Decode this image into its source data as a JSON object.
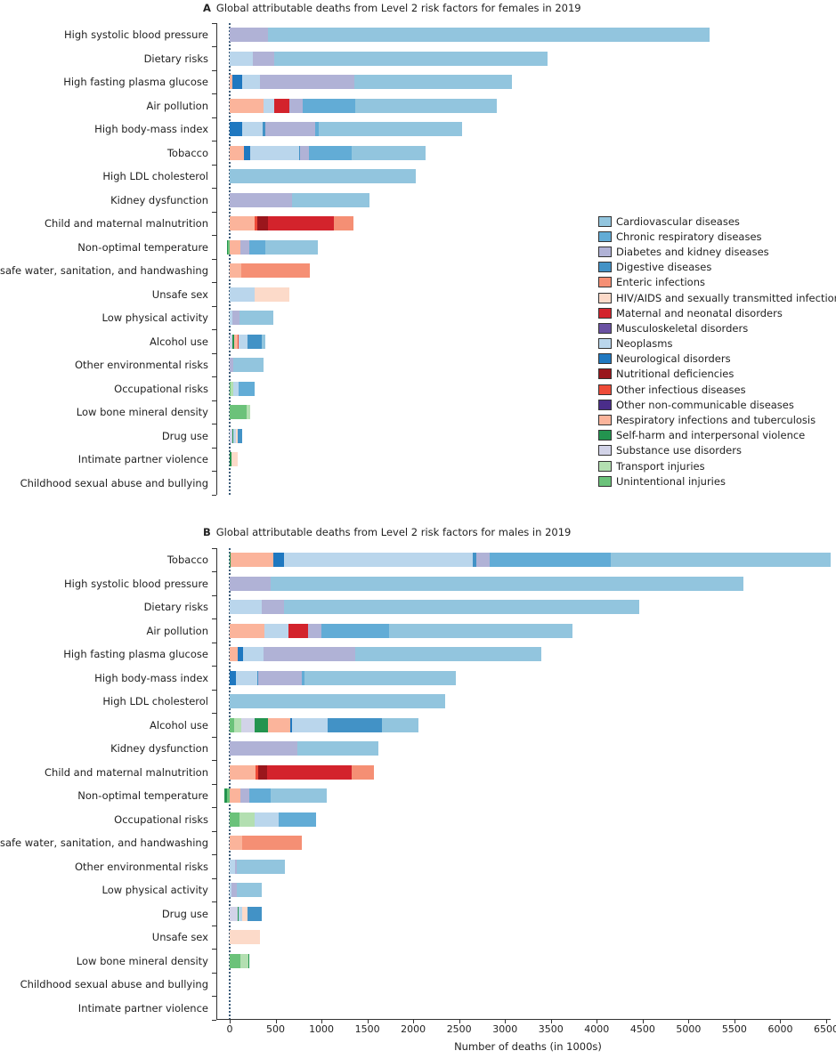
{
  "chart_data": {
    "type": "bar",
    "orientation": "horizontal-stacked",
    "xlabel": "Number of deaths (in 1000s)",
    "xlim": [
      0,
      6500
    ],
    "xticks": [
      0,
      500,
      1000,
      1500,
      2000,
      2500,
      3000,
      3500,
      4000,
      4500,
      5000,
      5500,
      6000,
      6500
    ],
    "legend_position": "right",
    "causes": {
      "CVD": {
        "name": "Cardiovascular diseases",
        "color": "#92c5de"
      },
      "CRD": {
        "name": "Chronic respiratory diseases",
        "color": "#62acd6"
      },
      "DKD": {
        "name": "Diabetes and kidney diseases",
        "color": "#b0b2d6"
      },
      "DIG": {
        "name": "Digestive diseases",
        "color": "#4292c6"
      },
      "ENT": {
        "name": "Enteric infections",
        "color": "#f58f74"
      },
      "HIV": {
        "name": "HIV/AIDS and sexually transmitted infections",
        "color": "#fcdac9"
      },
      "MAT": {
        "name": "Maternal and neonatal disorders",
        "color": "#d3232c"
      },
      "MSK": {
        "name": "Musculoskeletal disorders",
        "color": "#6a51a3"
      },
      "NEO": {
        "name": "Neoplasms",
        "color": "#bad6ec"
      },
      "NEU": {
        "name": "Neurological disorders",
        "color": "#1f78c0"
      },
      "NUT": {
        "name": "Nutritional deficiencies",
        "color": "#9a161c"
      },
      "OID": {
        "name": "Other infectious diseases",
        "color": "#ee4b38"
      },
      "ONC": {
        "name": "Other non-communicable diseases",
        "color": "#4a2d8a"
      },
      "RIT": {
        "name": "Respiratory infections and tuberculosis",
        "color": "#fbb49b"
      },
      "SH": {
        "name": "Self-harm and interpersonal violence",
        "color": "#23944f"
      },
      "SUD": {
        "name": "Substance use disorders",
        "color": "#d2d3e8"
      },
      "TRA": {
        "name": "Transport injuries",
        "color": "#b3dfb1"
      },
      "UNI": {
        "name": "Unintentional injuries",
        "color": "#6bc27a"
      }
    },
    "legend_order": [
      "CVD",
      "CRD",
      "DKD",
      "DIG",
      "ENT",
      "HIV",
      "MAT",
      "MSK",
      "NEO",
      "NEU",
      "NUT",
      "OID",
      "ONC",
      "RIT",
      "SH",
      "SUD",
      "TRA",
      "UNI"
    ],
    "panels": [
      {
        "letter": "A",
        "title": "Global attributable deaths from Level 2 risk factors for females in 2019",
        "rows": [
          {
            "label": "High systolic blood pressure",
            "segments": [
              [
                "DKD",
                420
              ],
              [
                "CVD",
                4808
              ]
            ]
          },
          {
            "label": "Dietary risks",
            "segments": [
              [
                "NEO",
                249
              ],
              [
                "DKD",
                236
              ],
              [
                "CVD",
                2981
              ]
            ]
          },
          {
            "label": "High fasting plasma glucose",
            "segments": [
              [
                "RIT",
                32
              ],
              [
                "NEU",
                103
              ],
              [
                "NEO",
                194
              ],
              [
                "DKD",
                1028
              ],
              [
                "CVD",
                1717
              ]
            ]
          },
          {
            "label": "Air pollution",
            "segments": [
              [
                "RIT",
                369
              ],
              [
                "NEO",
                120
              ],
              [
                "MAT",
                158
              ],
              [
                "DKD",
                152
              ],
              [
                "CRD",
                572
              ],
              [
                "CVD",
                1539
              ]
            ]
          },
          {
            "label": "High body-mass index",
            "segments": [
              [
                "NEU",
                136
              ],
              [
                "NEO",
                220
              ],
              [
                "DIG",
                32
              ],
              [
                "DKD",
                540
              ],
              [
                "CRD",
                45
              ],
              [
                "CVD",
                1558
              ]
            ]
          },
          {
            "label": "Tobacco",
            "segments": [
              [
                "RIT",
                158
              ],
              [
                "NEU",
                68
              ],
              [
                "NEO",
                530
              ],
              [
                "DIG",
                10
              ],
              [
                "DKD",
                97
              ],
              [
                "CRD",
                469
              ],
              [
                "CVD",
                805
              ]
            ]
          },
          {
            "label": "High LDL cholesterol",
            "segments": [
              [
                "CVD",
                2030
              ]
            ]
          },
          {
            "label": "Kidney dysfunction",
            "segments": [
              [
                "DKD",
                679
              ],
              [
                "CVD",
                841
              ]
            ]
          },
          {
            "label": "Child and maternal malnutrition",
            "segments": [
              [
                "RIT",
                275
              ],
              [
                "OID",
                29
              ],
              [
                "NUT",
                116
              ],
              [
                "MAT",
                718
              ],
              [
                "ENT",
                213
              ]
            ]
          },
          {
            "label": "Non-optimal temperature",
            "start": -26,
            "segments": [
              [
                "SH",
                10
              ],
              [
                "UNI",
                16
              ],
              [
                "RIT",
                120
              ],
              [
                "DKD",
                97
              ],
              [
                "CRD",
                171
              ],
              [
                "CVD",
                575
              ]
            ]
          },
          {
            "label": "Unsafe water, sanitation, and handwashing",
            "segments": [
              [
                "RIT",
                126
              ],
              [
                "ENT",
                744
              ]
            ]
          },
          {
            "label": "Unsafe sex",
            "segments": [
              [
                "NEO",
                275
              ],
              [
                "HIV",
                372
              ]
            ]
          },
          {
            "label": "Low physical activity",
            "segments": [
              [
                "NEO",
                32
              ],
              [
                "DKD",
                78
              ],
              [
                "CVD",
                362
              ]
            ]
          },
          {
            "label": "Alcohol use",
            "segments": [
              [
                "SUD",
                32
              ],
              [
                "SH",
                16
              ],
              [
                "RIT",
                39
              ],
              [
                "OID",
                10
              ],
              [
                "NEO",
                97
              ],
              [
                "DIG",
                152
              ],
              [
                "CVD",
                39
              ]
            ]
          },
          {
            "label": "Other environmental risks",
            "segments": [
              [
                "DKD",
                39
              ],
              [
                "CVD",
                330
              ]
            ]
          },
          {
            "label": "Occupational risks",
            "segments": [
              [
                "UNI",
                13
              ],
              [
                "TRA",
                26
              ],
              [
                "NEO",
                61
              ],
              [
                "CRD",
                168
              ]
            ]
          },
          {
            "label": "Low bone mineral density",
            "segments": [
              [
                "UNI",
                184
              ],
              [
                "TRA",
                39
              ]
            ]
          },
          {
            "label": "Drug use",
            "segments": [
              [
                "SUD",
                29
              ],
              [
                "SH",
                10
              ],
              [
                "NEO",
                32
              ],
              [
                "HIV",
                16
              ],
              [
                "DIG",
                52
              ]
            ]
          },
          {
            "label": "Intimate partner violence",
            "segments": [
              [
                "SH",
                16
              ],
              [
                "HIV",
                68
              ]
            ]
          },
          {
            "label": "Childhood sexual abuse and bullying",
            "segments": []
          }
        ]
      },
      {
        "letter": "B",
        "title": "Global attributable deaths from Level 2 risk factors for males in 2019",
        "rows": [
          {
            "label": "Tobacco",
            "segments": [
              [
                "SH",
                10
              ],
              [
                "RIT",
                465
              ],
              [
                "NEU",
                115
              ],
              [
                "NEO",
                2060
              ],
              [
                "DIG",
                40
              ],
              [
                "DKD",
                145
              ],
              [
                "CRD",
                1320
              ],
              [
                "CVD",
                2395
              ]
            ]
          },
          {
            "label": "High systolic blood pressure",
            "segments": [
              [
                "DKD",
                445
              ],
              [
                "CVD",
                5151
              ]
            ]
          },
          {
            "label": "Dietary risks",
            "segments": [
              [
                "NEO",
                350
              ],
              [
                "DKD",
                245
              ],
              [
                "CVD",
                3865
              ]
            ]
          },
          {
            "label": "Air pollution",
            "segments": [
              [
                "RIT",
                380
              ],
              [
                "NEO",
                265
              ],
              [
                "MAT",
                213
              ],
              [
                "DKD",
                145
              ],
              [
                "CRD",
                737
              ],
              [
                "CVD",
                1995
              ]
            ]
          },
          {
            "label": "High fasting plasma glucose",
            "segments": [
              [
                "RIT",
                84
              ],
              [
                "NEU",
                58
              ],
              [
                "NEO",
                223
              ],
              [
                "DKD",
                1000
              ],
              [
                "CVD",
                2030
              ]
            ]
          },
          {
            "label": "High body-mass index",
            "segments": [
              [
                "NEU",
                65
              ],
              [
                "NEO",
                236
              ],
              [
                "DIG",
                10
              ],
              [
                "DKD",
                472
              ],
              [
                "CRD",
                29
              ],
              [
                "CVD",
                1653
              ]
            ]
          },
          {
            "label": "High LDL cholesterol",
            "segments": [
              [
                "CVD",
                2350
              ]
            ]
          },
          {
            "label": "Alcohol use",
            "segments": [
              [
                "UNI",
                52
              ],
              [
                "TRA",
                71
              ],
              [
                "SUD",
                145
              ],
              [
                "SH",
                145
              ],
              [
                "RIT",
                250
              ],
              [
                "NEU",
                13
              ],
              [
                "NEO",
                390
              ],
              [
                "DIG",
                590
              ],
              [
                "CVD",
                400
              ]
            ]
          },
          {
            "label": "Kidney dysfunction",
            "segments": [
              [
                "DKD",
                737
              ],
              [
                "CVD",
                883
              ]
            ]
          },
          {
            "label": "Child and maternal malnutrition",
            "segments": [
              [
                "RIT",
                281
              ],
              [
                "OID",
                32
              ],
              [
                "NUT",
                97
              ],
              [
                "MAT",
                921
              ],
              [
                "ENT",
                242
              ]
            ]
          },
          {
            "label": "Non-optimal temperature",
            "start": -58,
            "segments": [
              [
                "SH",
                32
              ],
              [
                "UNI",
                26
              ],
              [
                "RIT",
                120
              ],
              [
                "DKD",
                97
              ],
              [
                "CRD",
                226
              ],
              [
                "CVD",
                614
              ]
            ]
          },
          {
            "label": "Occupational risks",
            "segments": [
              [
                "UNI",
                110
              ],
              [
                "TRA",
                162
              ],
              [
                "NEO",
                262
              ],
              [
                "CRD",
                411
              ]
            ]
          },
          {
            "label": "Unsafe water, sanitation, and handwashing",
            "segments": [
              [
                "RIT",
                136
              ],
              [
                "ENT",
                647
              ]
            ]
          },
          {
            "label": "Other environmental risks",
            "segments": [
              [
                "NEO",
                55
              ],
              [
                "DKD",
                26
              ],
              [
                "CVD",
                524
              ]
            ]
          },
          {
            "label": "Low physical activity",
            "segments": [
              [
                "NEO",
                16
              ],
              [
                "DKD",
                61
              ],
              [
                "CVD",
                275
              ]
            ]
          },
          {
            "label": "Drug use",
            "segments": [
              [
                "SUD",
                87
              ],
              [
                "SH",
                10
              ],
              [
                "NEO",
                39
              ],
              [
                "HIV",
                55
              ],
              [
                "DIG",
                162
              ]
            ]
          },
          {
            "label": "Unsafe sex",
            "segments": [
              [
                "HIV",
                330
              ]
            ]
          },
          {
            "label": "Low bone mineral density",
            "segments": [
              [
                "UNI",
                120
              ],
              [
                "TRA",
                81
              ],
              [
                "SH",
                10
              ]
            ]
          },
          {
            "label": "Childhood sexual abuse and bullying",
            "segments": []
          },
          {
            "label": "Intimate partner violence",
            "segments": []
          }
        ]
      }
    ]
  }
}
